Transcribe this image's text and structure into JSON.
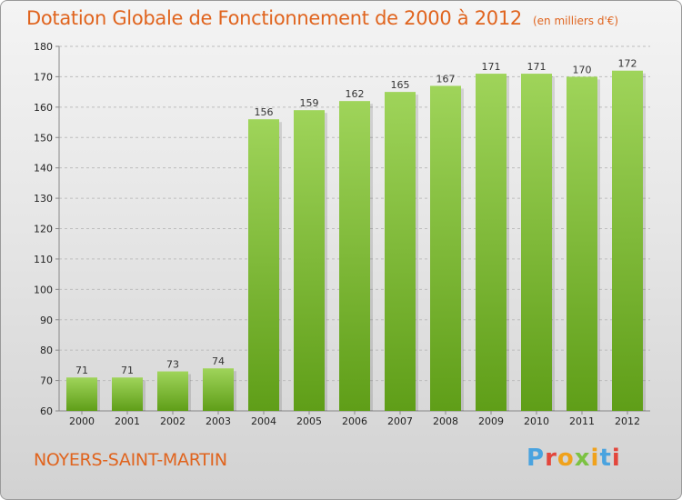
{
  "title": "Dotation Globale de Fonctionnement de 2000 à 2012",
  "subtitle": "(en milliers d'€)",
  "commune": "NOYERS-SAINT-MARTIN",
  "logo": {
    "letters": [
      "P",
      "r",
      "o",
      "x",
      "i",
      "t",
      "i"
    ],
    "colors": [
      "#4aa3df",
      "#e3463c",
      "#f0a21c",
      "#7cc242",
      "#f0a21c",
      "#4aa3df",
      "#e3463c"
    ]
  },
  "colors": {
    "accent": "#e0641e",
    "bar_top": "#9fd45a",
    "bar_bottom": "#5f9e18",
    "grid": "#bdbdbd"
  },
  "chart_data": {
    "type": "bar",
    "categories": [
      "2000",
      "2001",
      "2002",
      "2003",
      "2004",
      "2005",
      "2006",
      "2007",
      "2008",
      "2009",
      "2010",
      "2011",
      "2012"
    ],
    "values": [
      71,
      71,
      73,
      74,
      156,
      159,
      162,
      165,
      167,
      171,
      171,
      170,
      172
    ],
    "value_labels": [
      "71",
      "71",
      "73",
      "74",
      "156",
      "159",
      "162",
      "165",
      "167",
      "171",
      "171",
      "170",
      "172"
    ],
    "ylim": [
      60,
      180
    ],
    "yticks": [
      60,
      70,
      80,
      90,
      100,
      110,
      120,
      130,
      140,
      150,
      160,
      170,
      180
    ],
    "ytick_labels": [
      "60",
      "70",
      "80",
      "90",
      "100",
      "110",
      "120",
      "130",
      "140",
      "150",
      "160",
      "170",
      "180"
    ],
    "grid": true,
    "legend": "none"
  }
}
